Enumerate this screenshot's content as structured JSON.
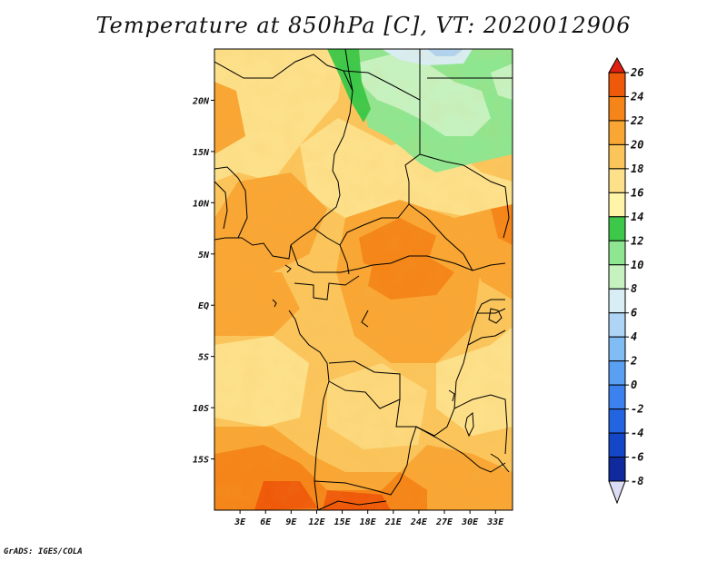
{
  "title": "Temperature at 850hPa [C], VT: 2020012906",
  "credit": "GrADS: IGES/COLA",
  "map": {
    "lon_range": [
      0,
      35
    ],
    "lat_range": [
      -20,
      25
    ],
    "lon_ticks": [
      {
        "value": 3,
        "label": "3E"
      },
      {
        "value": 6,
        "label": "6E"
      },
      {
        "value": 9,
        "label": "9E"
      },
      {
        "value": 12,
        "label": "12E"
      },
      {
        "value": 15,
        "label": "15E"
      },
      {
        "value": 18,
        "label": "18E"
      },
      {
        "value": 21,
        "label": "21E"
      },
      {
        "value": 24,
        "label": "24E"
      },
      {
        "value": 27,
        "label": "27E"
      },
      {
        "value": 30,
        "label": "30E"
      },
      {
        "value": 33,
        "label": "33E"
      }
    ],
    "lat_ticks": [
      {
        "value": 20,
        "label": "20N"
      },
      {
        "value": 15,
        "label": "15N"
      },
      {
        "value": 10,
        "label": "10N"
      },
      {
        "value": 5,
        "label": "5N"
      },
      {
        "value": 0,
        "label": "EQ"
      },
      {
        "value": -5,
        "label": "5S"
      },
      {
        "value": -10,
        "label": "10S"
      },
      {
        "value": -15,
        "label": "15S"
      }
    ]
  },
  "colorbar": {
    "levels": [
      {
        "value": -8,
        "label": "-8",
        "color": "#0b0b6e"
      },
      {
        "value": -6,
        "label": "-6",
        "color": "#0f2a9c"
      },
      {
        "value": -4,
        "label": "-4",
        "color": "#1446c8"
      },
      {
        "value": -2,
        "label": "-2",
        "color": "#2364e0"
      },
      {
        "value": 0,
        "label": "0",
        "color": "#3c82ee"
      },
      {
        "value": 2,
        "label": "2",
        "color": "#5aa0f2"
      },
      {
        "value": 4,
        "label": "4",
        "color": "#82bcf5"
      },
      {
        "value": 6,
        "label": "6",
        "color": "#aed4f6"
      },
      {
        "value": 8,
        "label": "8",
        "color": "#d8eef4"
      },
      {
        "value": 10,
        "label": "10",
        "color": "#c6f2c0"
      },
      {
        "value": 12,
        "label": "12",
        "color": "#8fe690"
      },
      {
        "value": 14,
        "label": "14",
        "color": "#3ec84a"
      },
      {
        "value": 16,
        "label": "16",
        "color": "#fff4a8"
      },
      {
        "value": 18,
        "label": "18",
        "color": "#fde08a"
      },
      {
        "value": 20,
        "label": "20",
        "color": "#fbc55c"
      },
      {
        "value": 22,
        "label": "22",
        "color": "#f9a634"
      },
      {
        "value": 24,
        "label": "24",
        "color": "#f58518"
      },
      {
        "value": 26,
        "label": "26",
        "color": "#ef5a0a"
      }
    ],
    "below_color": "#dcdcf4",
    "above_color": "#e02010"
  }
}
